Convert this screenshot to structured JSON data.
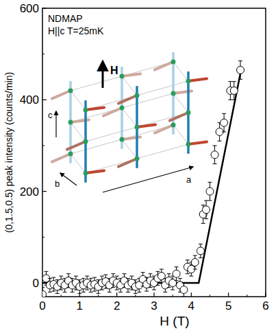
{
  "chart_data": {
    "type": "scatter",
    "title": "NDMAP",
    "subtitle": "H||c T=25mK",
    "x_label": "H (T)",
    "y_label": "(0,1.5,0.5) peak intensity (counts/min)",
    "annotations": [
      "H",
      "c",
      "b",
      "a"
    ],
    "xlim": [
      0,
      6
    ],
    "ylim": [
      -30,
      600
    ],
    "xticks": [
      0,
      1,
      2,
      3,
      4,
      5,
      6
    ],
    "yticks": [
      0,
      200,
      400,
      600
    ],
    "series": [
      {
        "type": "scatter",
        "marker": "open-circle",
        "color": "#000000",
        "x": [
          0.0,
          0.1,
          0.2,
          0.3,
          0.4,
          0.5,
          0.6,
          0.7,
          0.8,
          0.9,
          1.0,
          1.1,
          1.2,
          1.3,
          1.4,
          1.5,
          1.6,
          1.7,
          1.8,
          1.9,
          2.0,
          2.1,
          2.2,
          2.3,
          2.4,
          2.5,
          2.6,
          2.7,
          2.8,
          2.9,
          3.0,
          3.1,
          3.2,
          3.3,
          3.4,
          3.5,
          3.6,
          3.7,
          3.8,
          3.9,
          4.0,
          4.1,
          4.25,
          4.32,
          4.4,
          4.5,
          4.63,
          4.76,
          4.88,
          5.05,
          5.15,
          5.32
        ],
        "values": [
          -25,
          10,
          -5,
          -3,
          -8,
          0,
          -5,
          5,
          -5,
          0,
          -8,
          -5,
          0,
          -5,
          -3,
          -8,
          0,
          3,
          -5,
          5,
          0,
          -5,
          5,
          -5,
          0,
          -8,
          -5,
          8,
          -3,
          5,
          0,
          10,
          15,
          -5,
          5,
          0,
          20,
          -5,
          -15,
          35,
          30,
          45,
          70,
          150,
          160,
          200,
          280,
          330,
          350,
          420,
          420,
          465
        ],
        "errors": [
          15,
          15,
          15,
          15,
          15,
          15,
          15,
          15,
          15,
          15,
          15,
          15,
          15,
          15,
          15,
          15,
          15,
          15,
          15,
          15,
          15,
          15,
          15,
          15,
          15,
          15,
          15,
          15,
          15,
          15,
          15,
          15,
          15,
          15,
          15,
          15,
          15,
          15,
          15,
          15,
          15,
          15,
          15,
          20,
          20,
          20,
          20,
          20,
          20,
          20,
          20,
          20
        ]
      },
      {
        "type": "line",
        "line_style": "solid",
        "color": "#000000",
        "x": [
          0,
          4.2,
          5.35
        ],
        "values": [
          0,
          0,
          470
        ]
      }
    ]
  }
}
